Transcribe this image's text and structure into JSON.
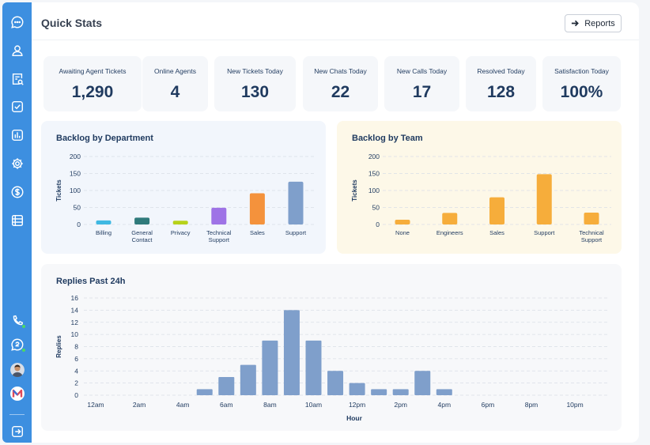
{
  "header": {
    "title": "Quick Stats",
    "reports_label": "Reports"
  },
  "sidebar": {
    "icons": [
      "chat-icon",
      "user-icon",
      "search-document-icon",
      "checkbox-icon",
      "bar-chart-icon",
      "gear-icon",
      "dollar-icon",
      "list-icon"
    ],
    "bottom_icons": [
      "phone-icon",
      "chat-status-icon",
      "user-avatar",
      "logo-m-icon",
      "logout-icon"
    ]
  },
  "stats": [
    {
      "label": "Awaiting Agent Tickets",
      "value": "1,290"
    },
    {
      "label": "Online Agents",
      "value": "4"
    },
    {
      "label": "New Tickets Today",
      "value": "130"
    },
    {
      "label": "New Chats Today",
      "value": "22"
    },
    {
      "label": "New Calls Today",
      "value": "17"
    },
    {
      "label": "Resolved Today",
      "value": "128"
    },
    {
      "label": "Satisfaction Today",
      "value": "100%"
    }
  ],
  "chart_data": [
    {
      "type": "bar",
      "title": "Backlog by Department",
      "ylabel": "Tickets",
      "xlabel": "",
      "ylim": [
        0,
        200
      ],
      "yticks": [
        0,
        50,
        100,
        150,
        200
      ],
      "categories": [
        "Billing",
        "General Contact",
        "Privacy",
        "Technical Support",
        "Sales",
        "Support"
      ],
      "values": [
        12,
        20,
        11,
        49,
        92,
        126
      ],
      "colors": [
        "#3fb8e2",
        "#2f7a7b",
        "#b7d21a",
        "#9e73e6",
        "#f4923c",
        "#7f9fcb"
      ],
      "background": "#f2f6fc"
    },
    {
      "type": "bar",
      "title": "Backlog by Team",
      "ylabel": "Tickets",
      "xlabel": "",
      "ylim": [
        0,
        200
      ],
      "yticks": [
        0,
        50,
        100,
        150,
        200
      ],
      "categories": [
        "None",
        "Engineers",
        "Sales",
        "Support",
        "Technical Support"
      ],
      "values": [
        14,
        34,
        80,
        148,
        35
      ],
      "colors": [
        "#f6ad3b",
        "#f6ad3b",
        "#f6ad3b",
        "#f6ad3b",
        "#f6ad3b"
      ],
      "background": "#fdf8e8"
    },
    {
      "type": "bar",
      "title": "Replies Past 24h",
      "ylabel": "Replies",
      "xlabel": "Hour",
      "ylim": [
        0,
        16
      ],
      "yticks": [
        0,
        2,
        4,
        6,
        8,
        10,
        12,
        14,
        16
      ],
      "xtick_labels": [
        "12am",
        "2am",
        "4am",
        "6am",
        "8am",
        "10am",
        "12pm",
        "2pm",
        "4pm",
        "6pm",
        "8pm",
        "10pm"
      ],
      "hours": [
        0,
        1,
        2,
        3,
        4,
        5,
        6,
        7,
        8,
        9,
        10,
        11,
        12,
        13,
        14,
        15,
        16,
        17,
        18,
        19,
        20,
        21,
        22,
        23
      ],
      "values": [
        0,
        0,
        0,
        0,
        0,
        1,
        3,
        5,
        9,
        14,
        9,
        4,
        2,
        1,
        1,
        4,
        1,
        0,
        0,
        0,
        0,
        0,
        0,
        0
      ],
      "colors": [
        "#7f9fcb"
      ],
      "background": "#f7f8fa"
    }
  ]
}
